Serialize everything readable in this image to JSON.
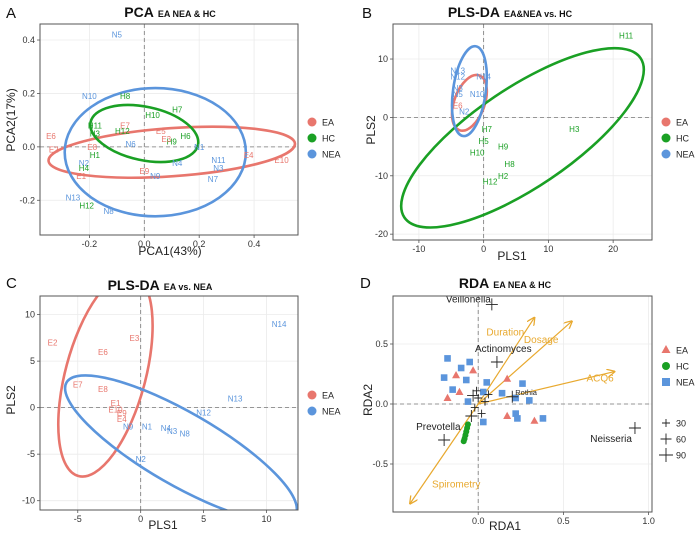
{
  "colors": {
    "EA": "#e8766d",
    "HC": "#1aa024",
    "NEA": "#5b95dc",
    "arrow": "#e8a92f"
  },
  "chart_data": [
    {
      "type": "scatter",
      "panel": "A",
      "title": "PCA",
      "subtitle": "EA NEA & HC",
      "xlabel": "PCA1(43%)",
      "ylabel": "PCA2(17%)",
      "xlim": [
        -0.38,
        0.56
      ],
      "ylim": [
        -0.33,
        0.46
      ],
      "xticks": [
        -0.2,
        0.0,
        0.2,
        0.4
      ],
      "yticks": [
        -0.2,
        0.0,
        0.2,
        0.4
      ],
      "xtick_labels": [
        "-0.2",
        "0.0",
        "0.2",
        "0.4"
      ],
      "ytick_labels": [
        "-0.2",
        "0.0",
        "0.2",
        "0.4"
      ],
      "legend": [
        "EA",
        "HC",
        "NEA"
      ],
      "points": [
        {
          "label": "N5",
          "group": "NEA",
          "x": -0.1,
          "y": 0.42
        },
        {
          "label": "N10",
          "group": "NEA",
          "x": -0.2,
          "y": 0.19
        },
        {
          "label": "H8",
          "group": "HC",
          "x": -0.07,
          "y": 0.19
        },
        {
          "label": "H10",
          "group": "HC",
          "x": 0.03,
          "y": 0.12
        },
        {
          "label": "H7",
          "group": "HC",
          "x": 0.12,
          "y": 0.14
        },
        {
          "label": "E7",
          "group": "EA",
          "x": -0.07,
          "y": 0.08
        },
        {
          "label": "H11",
          "group": "HC",
          "x": -0.18,
          "y": 0.08
        },
        {
          "label": "H3",
          "group": "HC",
          "x": -0.18,
          "y": 0.05
        },
        {
          "label": "H12",
          "group": "HC",
          "x": -0.08,
          "y": 0.06
        },
        {
          "label": "E5",
          "group": "EA",
          "x": 0.06,
          "y": 0.06
        },
        {
          "label": "H6",
          "group": "HC",
          "x": 0.15,
          "y": 0.04
        },
        {
          "label": "N1",
          "group": "NEA",
          "x": 0.2,
          "y": 0.0
        },
        {
          "label": "H9",
          "group": "HC",
          "x": 0.1,
          "y": 0.02
        },
        {
          "label": "E3",
          "group": "EA",
          "x": 0.08,
          "y": 0.03
        },
        {
          "label": "N6",
          "group": "NEA",
          "x": -0.05,
          "y": 0.01
        },
        {
          "label": "E6",
          "group": "EA",
          "x": -0.34,
          "y": 0.04
        },
        {
          "label": "E8",
          "group": "EA",
          "x": -0.19,
          "y": 0.0
        },
        {
          "label": "H1",
          "group": "HC",
          "x": -0.18,
          "y": -0.03
        },
        {
          "label": "E2",
          "group": "EA",
          "x": -0.33,
          "y": -0.01
        },
        {
          "label": "E4",
          "group": "EA",
          "x": 0.38,
          "y": -0.03
        },
        {
          "label": "E10",
          "group": "EA",
          "x": 0.5,
          "y": -0.05
        },
        {
          "label": "N4",
          "group": "NEA",
          "x": 0.12,
          "y": -0.06
        },
        {
          "label": "N2",
          "group": "NEA",
          "x": -0.22,
          "y": -0.06
        },
        {
          "label": "H4",
          "group": "HC",
          "x": -0.22,
          "y": -0.08
        },
        {
          "label": "N11",
          "group": "NEA",
          "x": 0.27,
          "y": -0.05
        },
        {
          "label": "N3",
          "group": "NEA",
          "x": 0.27,
          "y": -0.08
        },
        {
          "label": "E1",
          "group": "EA",
          "x": -0.23,
          "y": -0.11
        },
        {
          "label": "E9",
          "group": "EA",
          "x": 0.0,
          "y": -0.09
        },
        {
          "label": "N9",
          "group": "NEA",
          "x": 0.04,
          "y": -0.11
        },
        {
          "label": "N7",
          "group": "NEA",
          "x": 0.25,
          "y": -0.12
        },
        {
          "label": "N13",
          "group": "NEA",
          "x": -0.26,
          "y": -0.19
        },
        {
          "label": "H12",
          "group": "HC",
          "x": -0.21,
          "y": -0.22
        },
        {
          "label": "N8",
          "group": "NEA",
          "x": -0.13,
          "y": -0.24
        }
      ],
      "ellipses": [
        {
          "group": "EA",
          "cx": 0.1,
          "cy": -0.02,
          "rx": 0.45,
          "ry": 0.09,
          "angle_deg": -4
        },
        {
          "group": "HC",
          "cx": 0.0,
          "cy": 0.05,
          "rx": 0.2,
          "ry": 0.1,
          "angle_deg": 12
        },
        {
          "group": "NEA",
          "cx": 0.04,
          "cy": -0.02,
          "rx": 0.33,
          "ry": 0.24,
          "angle_deg": 0
        }
      ]
    },
    {
      "type": "scatter",
      "panel": "B",
      "title": "PLS-DA",
      "subtitle": "EA&NEA vs. HC",
      "xlabel": "PLS1",
      "ylabel": "PLS2",
      "xlim": [
        -14,
        26
      ],
      "ylim": [
        -21,
        16
      ],
      "xticks": [
        -10,
        0,
        10,
        20
      ],
      "yticks": [
        -20,
        -10,
        0,
        10
      ],
      "xtick_labels": [
        "-10",
        "0",
        "10",
        "20"
      ],
      "ytick_labels": [
        "-20",
        "-10",
        "0",
        "10"
      ],
      "legend": [
        "EA",
        "HC",
        "NEA"
      ],
      "points": [
        {
          "label": "H11",
          "group": "HC",
          "x": 22,
          "y": 14
        },
        {
          "label": "N13",
          "group": "NEA",
          "x": -4,
          "y": 8
        },
        {
          "label": "N12",
          "group": "NEA",
          "x": -4,
          "y": 7
        },
        {
          "label": "N14",
          "group": "NEA",
          "x": 0,
          "y": 7
        },
        {
          "label": "N3",
          "group": "NEA",
          "x": -4,
          "y": 5
        },
        {
          "label": "N5",
          "group": "NEA",
          "x": -4,
          "y": 4
        },
        {
          "label": "N10",
          "group": "NEA",
          "x": -1,
          "y": 4
        },
        {
          "label": "E6",
          "group": "EA",
          "x": -4,
          "y": 2
        },
        {
          "label": "N2",
          "group": "NEA",
          "x": -3,
          "y": 1
        },
        {
          "label": "H7",
          "group": "HC",
          "x": 0.5,
          "y": -2
        },
        {
          "label": "H5",
          "group": "HC",
          "x": 0,
          "y": -4
        },
        {
          "label": "H9",
          "group": "HC",
          "x": 3,
          "y": -5
        },
        {
          "label": "H10",
          "group": "HC",
          "x": -1,
          "y": -6
        },
        {
          "label": "H8",
          "group": "HC",
          "x": 4,
          "y": -8
        },
        {
          "label": "H3",
          "group": "HC",
          "x": 14,
          "y": -2
        },
        {
          "label": "H2",
          "group": "HC",
          "x": 3,
          "y": -10
        },
        {
          "label": "H12",
          "group": "HC",
          "x": 1,
          "y": -11
        }
      ],
      "ellipses": [
        {
          "group": "EA",
          "cx": -2.2,
          "cy": 2.5,
          "rx": 4.5,
          "ry": 2.6,
          "angle_deg": -70
        },
        {
          "group": "HC",
          "cx": 6,
          "cy": -3.5,
          "rx": 22,
          "ry": 8.5,
          "angle_deg": -34
        },
        {
          "group": "NEA",
          "cx": -2.2,
          "cy": 4.5,
          "rx": 7,
          "ry": 2.8,
          "angle_deg": -82
        }
      ]
    },
    {
      "type": "scatter",
      "panel": "C",
      "title": "PLS-DA",
      "subtitle": "EA vs. NEA",
      "xlabel": "PLS1",
      "ylabel": "PLS2",
      "xlim": [
        -8,
        12.5
      ],
      "ylim": [
        -11,
        12
      ],
      "xticks": [
        -5,
        0,
        5,
        10
      ],
      "yticks": [
        -10,
        -5,
        0,
        5,
        10
      ],
      "xtick_labels": [
        "-5",
        "0",
        "5",
        "10"
      ],
      "ytick_labels": [
        "-10",
        "-5",
        "0",
        "5",
        "10"
      ],
      "legend": [
        "EA",
        "NEA"
      ],
      "points": [
        {
          "label": "N14",
          "group": "NEA",
          "x": 11,
          "y": 9
        },
        {
          "label": "E2",
          "group": "EA",
          "x": -7,
          "y": 7
        },
        {
          "label": "E3",
          "group": "EA",
          "x": -0.5,
          "y": 7.5
        },
        {
          "label": "E6",
          "group": "EA",
          "x": -3,
          "y": 6
        },
        {
          "label": "E7",
          "group": "EA",
          "x": -5,
          "y": 2.5
        },
        {
          "label": "E8",
          "group": "EA",
          "x": -3,
          "y": 2
        },
        {
          "label": "N13",
          "group": "NEA",
          "x": 7.5,
          "y": 1
        },
        {
          "label": "E1",
          "group": "EA",
          "x": -2,
          "y": 0.5
        },
        {
          "label": "E10",
          "group": "EA",
          "x": -2,
          "y": -0.2
        },
        {
          "label": "E9",
          "group": "EA",
          "x": -1.5,
          "y": -0.6
        },
        {
          "label": "N12",
          "group": "NEA",
          "x": 5,
          "y": -0.5
        },
        {
          "label": "E4",
          "group": "EA",
          "x": -1.5,
          "y": -1.2
        },
        {
          "label": "N9",
          "group": "NEA",
          "x": -1,
          "y": -2
        },
        {
          "label": "N1",
          "group": "NEA",
          "x": 0.5,
          "y": -2
        },
        {
          "label": "N4",
          "group": "NEA",
          "x": 2,
          "y": -2.2
        },
        {
          "label": "N3",
          "group": "NEA",
          "x": 2.5,
          "y": -2.5
        },
        {
          "label": "N8",
          "group": "NEA",
          "x": 3.5,
          "y": -2.8
        },
        {
          "label": "N2",
          "group": "NEA",
          "x": 0,
          "y": -5.5
        }
      ],
      "ellipses": [
        {
          "group": "EA",
          "cx": -2.8,
          "cy": 3.5,
          "rx": 8.3,
          "ry": 4.3,
          "angle_deg": -75
        },
        {
          "group": "NEA",
          "cx": 3.2,
          "cy": -4.4,
          "rx": 10.5,
          "ry": 3.9,
          "angle_deg": 30
        }
      ]
    },
    {
      "type": "scatter",
      "panel": "D",
      "title": "RDA",
      "subtitle": "EA NEA & HC",
      "xlabel": "RDA1",
      "ylabel": "RDA2",
      "xlim": [
        -0.5,
        1.02
      ],
      "ylim": [
        -0.9,
        0.9
      ],
      "xticks": [
        0.0,
        0.5,
        1.0
      ],
      "yticks": [
        -0.5,
        0.0,
        0.5
      ],
      "xtick_labels": [
        "0.0",
        "0.5",
        "1.0"
      ],
      "ytick_labels": [
        "-0.5",
        "0.0",
        "0.5"
      ],
      "legend": [
        "EA",
        "HC",
        "NEA"
      ],
      "size_legend": [
        "30",
        "60",
        "90"
      ],
      "arrows": [
        {
          "label": "Duration",
          "x": 0.33,
          "y": 0.72
        },
        {
          "label": "Dosage",
          "x": 0.55,
          "y": 0.69
        },
        {
          "label": "ACQ6",
          "x": 0.8,
          "y": 0.27
        },
        {
          "label": "Spirometry",
          "x": -0.4,
          "y": -0.83
        }
      ],
      "species": [
        {
          "label": "Veillonella",
          "x": 0.08,
          "y": 0.83
        },
        {
          "label": "Actinomyces",
          "x": 0.11,
          "y": 0.35
        },
        {
          "label": "Rothia",
          "x": 0.2,
          "y": 0.06
        },
        {
          "label": "Neisseria",
          "x": 0.92,
          "y": -0.2
        },
        {
          "label": "Prevotella",
          "x": -0.2,
          "y": -0.3
        }
      ],
      "points": [
        {
          "group": "NEA",
          "x": -0.18,
          "y": 0.38
        },
        {
          "group": "NEA",
          "x": -0.05,
          "y": 0.35
        },
        {
          "group": "NEA",
          "x": -0.1,
          "y": 0.3
        },
        {
          "group": "EA",
          "x": -0.03,
          "y": 0.28
        },
        {
          "group": "NEA",
          "x": -0.2,
          "y": 0.22
        },
        {
          "group": "EA",
          "x": -0.13,
          "y": 0.24
        },
        {
          "group": "NEA",
          "x": -0.07,
          "y": 0.2
        },
        {
          "group": "EA",
          "x": 0.17,
          "y": 0.21
        },
        {
          "group": "NEA",
          "x": 0.05,
          "y": 0.18
        },
        {
          "group": "NEA",
          "x": 0.26,
          "y": 0.17
        },
        {
          "group": "NEA",
          "x": -0.15,
          "y": 0.12
        },
        {
          "group": "EA",
          "x": -0.11,
          "y": 0.1
        },
        {
          "group": "NEA",
          "x": 0.03,
          "y": 0.1
        },
        {
          "group": "NEA",
          "x": 0.14,
          "y": 0.09
        },
        {
          "group": "NEA",
          "x": 0.22,
          "y": 0.05
        },
        {
          "group": "EA",
          "x": -0.18,
          "y": 0.05
        },
        {
          "group": "NEA",
          "x": 0.3,
          "y": 0.03
        },
        {
          "group": "NEA",
          "x": -0.06,
          "y": 0.02
        },
        {
          "group": "NEA",
          "x": 0.22,
          "y": -0.08
        },
        {
          "group": "EA",
          "x": 0.17,
          "y": -0.1
        },
        {
          "group": "NEA",
          "x": 0.23,
          "y": -0.12
        },
        {
          "group": "NEA",
          "x": 0.38,
          "y": -0.12
        },
        {
          "group": "EA",
          "x": 0.33,
          "y": -0.14
        },
        {
          "group": "NEA",
          "x": 0.03,
          "y": -0.15
        },
        {
          "group": "HC",
          "x": -0.06,
          "y": -0.17
        },
        {
          "group": "HC",
          "x": -0.065,
          "y": -0.2
        },
        {
          "group": "HC",
          "x": -0.07,
          "y": -0.23
        },
        {
          "group": "HC",
          "x": -0.075,
          "y": -0.26
        },
        {
          "group": "HC",
          "x": -0.08,
          "y": -0.29
        },
        {
          "group": "HC",
          "x": -0.085,
          "y": -0.31
        }
      ],
      "crosses": [
        {
          "x": -0.03,
          "y": 0.07,
          "size": 60
        },
        {
          "x": 0.0,
          "y": 0.05,
          "size": 30
        },
        {
          "x": 0.04,
          "y": 0.02,
          "size": 30
        },
        {
          "x": -0.02,
          "y": -0.03,
          "size": 30
        },
        {
          "x": 0.06,
          "y": 0.08,
          "size": 30
        },
        {
          "x": -0.01,
          "y": 0.11,
          "size": 30
        },
        {
          "x": 0.02,
          "y": -0.08,
          "size": 30
        },
        {
          "x": -0.04,
          "y": -0.1,
          "size": 60
        }
      ]
    }
  ]
}
